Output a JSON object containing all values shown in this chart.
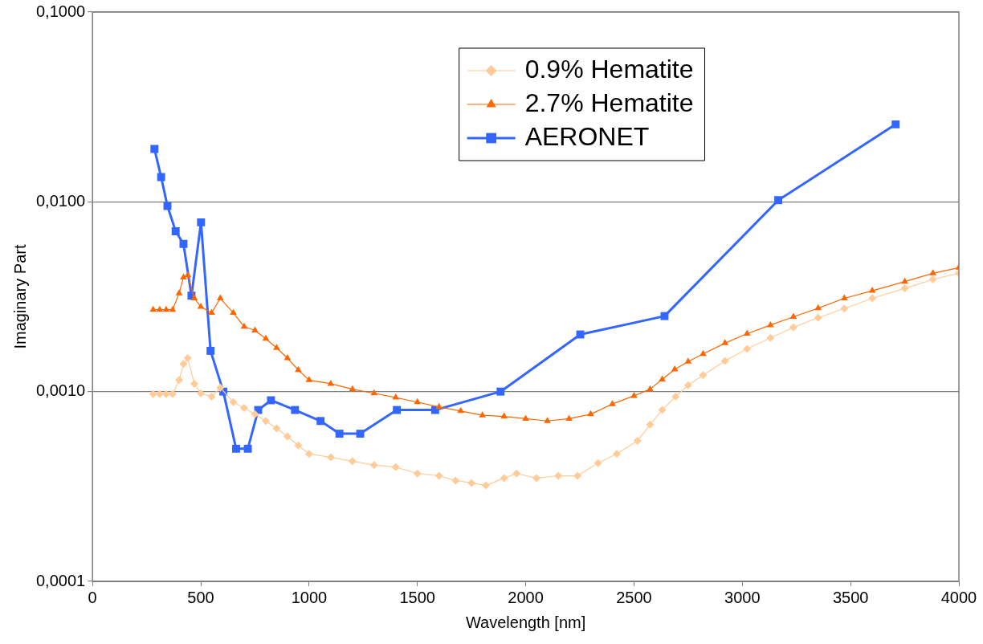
{
  "chart_data": {
    "type": "line",
    "xlabel": "Wavelength [nm]",
    "ylabel": "Imaginary Part",
    "log": "y",
    "grid": "y",
    "legend": "top",
    "xlim": [
      0,
      4000
    ],
    "xticks": [
      0,
      500,
      1000,
      1500,
      2000,
      2500,
      3000,
      3500,
      4000
    ],
    "ylim": [
      0.0001,
      0.1
    ],
    "yticks": [
      {
        "value": 0.0001,
        "label": "0,0001"
      },
      {
        "value": 0.001,
        "label": "0,0010"
      },
      {
        "value": 0.01,
        "label": "0,0100"
      },
      {
        "value": 0.1,
        "label": "0,1000"
      }
    ],
    "series": [
      {
        "name": "0.9% Hematite",
        "color": "#ffcc99",
        "marker": "diamond",
        "x": [
          280,
          310,
          340,
          370,
          400,
          420,
          440,
          470,
          500,
          550,
          590,
          650,
          700,
          750,
          800,
          850,
          900,
          950,
          1000,
          1100,
          1200,
          1300,
          1400,
          1500,
          1600,
          1676,
          1750,
          1816,
          1900,
          1958,
          2050,
          2150,
          2239,
          2334,
          2420,
          2516,
          2574,
          2630,
          2692,
          2750,
          2819,
          2920,
          3022,
          3130,
          3236,
          3350,
          3471,
          3600,
          3750,
          3880,
          4000
        ],
        "values": [
          0.00097,
          0.00097,
          0.00097,
          0.00097,
          0.00115,
          0.0014,
          0.0015,
          0.0011,
          0.00098,
          0.00094,
          0.00105,
          0.00088,
          0.00082,
          0.00076,
          0.0007,
          0.00064,
          0.00058,
          0.00052,
          0.00047,
          0.00045,
          0.00043,
          0.00041,
          0.0004,
          0.00037,
          0.00036,
          0.00034,
          0.00033,
          0.00032,
          0.00035,
          0.00037,
          0.00035,
          0.00036,
          0.00036,
          0.00042,
          0.00047,
          0.00055,
          0.00067,
          0.0008,
          0.00094,
          0.00108,
          0.00122,
          0.00145,
          0.00168,
          0.00192,
          0.00218,
          0.00245,
          0.00274,
          0.0031,
          0.0035,
          0.0039,
          0.0042
        ]
      },
      {
        "name": "2.7% Hematite",
        "color": "#ff6600",
        "marker": "triangle",
        "x": [
          280,
          310,
          340,
          370,
          400,
          420,
          440,
          470,
          500,
          550,
          590,
          650,
          700,
          750,
          800,
          850,
          900,
          950,
          1000,
          1100,
          1200,
          1300,
          1400,
          1500,
          1600,
          1700,
          1800,
          1900,
          2000,
          2100,
          2200,
          2300,
          2400,
          2500,
          2574,
          2630,
          2688,
          2750,
          2819,
          2920,
          3022,
          3130,
          3236,
          3350,
          3471,
          3600,
          3750,
          3880,
          4000
        ],
        "values": [
          0.0027,
          0.0027,
          0.0027,
          0.0027,
          0.0033,
          0.004,
          0.0041,
          0.0031,
          0.0028,
          0.0026,
          0.0031,
          0.0026,
          0.0022,
          0.0021,
          0.0019,
          0.0017,
          0.0015,
          0.0013,
          0.00115,
          0.0011,
          0.00103,
          0.00098,
          0.00093,
          0.00088,
          0.00083,
          0.00079,
          0.00075,
          0.00074,
          0.00072,
          0.0007,
          0.00072,
          0.00076,
          0.00086,
          0.00095,
          0.00103,
          0.00116,
          0.00131,
          0.00144,
          0.00158,
          0.0018,
          0.00202,
          0.00224,
          0.00248,
          0.00275,
          0.0031,
          0.0034,
          0.0038,
          0.0042,
          0.0045
        ]
      },
      {
        "name": "AERONET",
        "color": "#3366ff",
        "marker": "square",
        "x": [
          286,
          317,
          346,
          384,
          420,
          457,
          501,
          545,
          604,
          663,
          717,
          765,
          824,
          935,
          1053,
          1140,
          1236,
          1405,
          1582,
          1884,
          2252,
          2641,
          3166,
          3708
        ],
        "values": [
          0.019,
          0.0135,
          0.0095,
          0.007,
          0.006,
          0.0032,
          0.0078,
          0.00164,
          0.001,
          0.0005,
          0.0005,
          0.0008,
          0.0009,
          0.0008,
          0.0007,
          0.0006,
          0.0006,
          0.0008,
          0.0008,
          0.001,
          0.002,
          0.0025,
          0.0102,
          0.0256
        ]
      }
    ]
  }
}
